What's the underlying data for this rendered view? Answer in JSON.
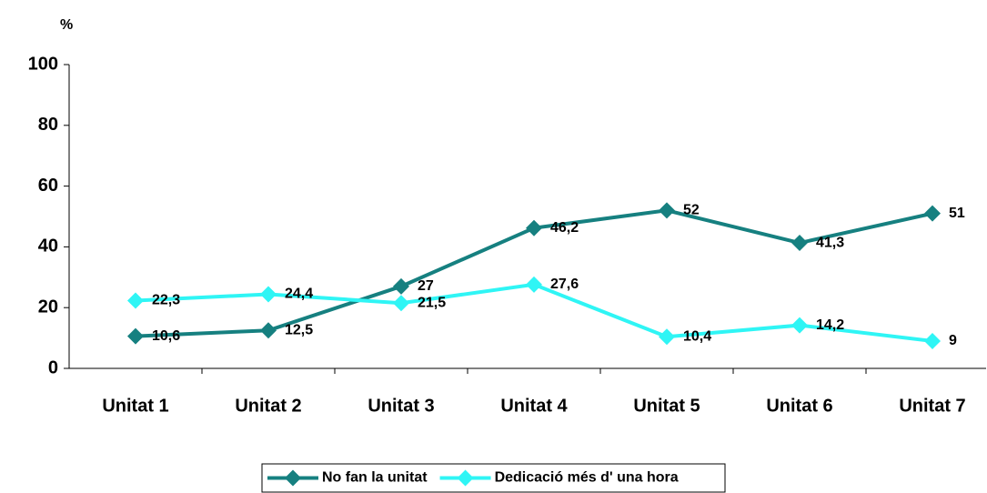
{
  "chart_data": {
    "type": "line",
    "y_label": "%",
    "categories": [
      "Unitat 1",
      "Unitat 2",
      "Unitat 3",
      "Unitat 4",
      "Unitat 5",
      "Unitat 6",
      "Unitat 7"
    ],
    "series": [
      {
        "name": "No fan la unitat",
        "color": "#168080",
        "values": [
          10.6,
          12.5,
          27,
          46.2,
          52,
          41.3,
          51
        ],
        "value_labels": [
          "10,6",
          "12,5",
          "27",
          "46,2",
          "52",
          "41,3",
          "51"
        ]
      },
      {
        "name": "Dedicació més d' una hora",
        "color": "#2ff5f5",
        "values": [
          22.3,
          24.4,
          21.5,
          27.6,
          10.4,
          14.2,
          9
        ],
        "value_labels": [
          "22,3",
          "24,4",
          "21,5",
          "27,6",
          "10,4",
          "14,2",
          "9"
        ]
      }
    ],
    "ylim": [
      0,
      100
    ],
    "yticks": [
      0,
      20,
      40,
      60,
      80,
      100
    ],
    "legend": "bottom"
  }
}
